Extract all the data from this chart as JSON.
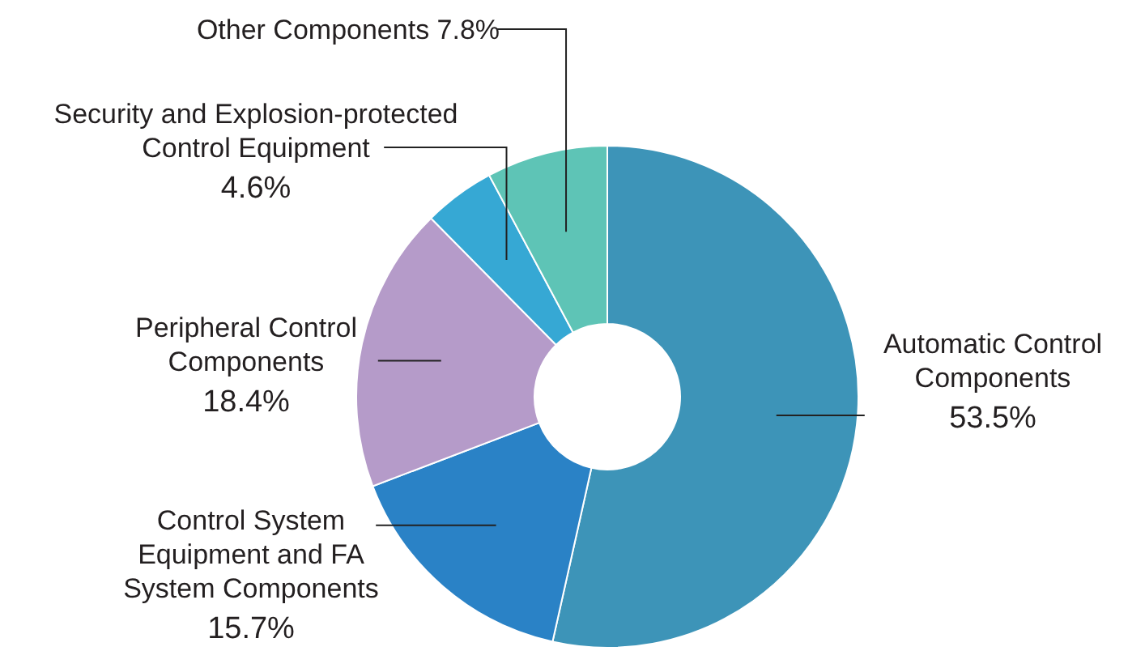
{
  "chart_data": {
    "type": "donut",
    "categories": [
      "Automatic Control Components",
      "Control System Equipment and FA System Components",
      "Peripheral Control Components",
      "Security and Explosion-protected Control Equipment",
      "Other Components"
    ],
    "values": [
      53.5,
      15.7,
      18.4,
      4.6,
      7.8
    ],
    "colors": [
      "#3d94b8",
      "#2a82c6",
      "#b59bc9",
      "#36a8d4",
      "#5ec4b6"
    ],
    "value_labels": [
      "53.5%",
      "15.7%",
      "18.4%",
      "4.6%",
      "7.8%"
    ]
  }
}
